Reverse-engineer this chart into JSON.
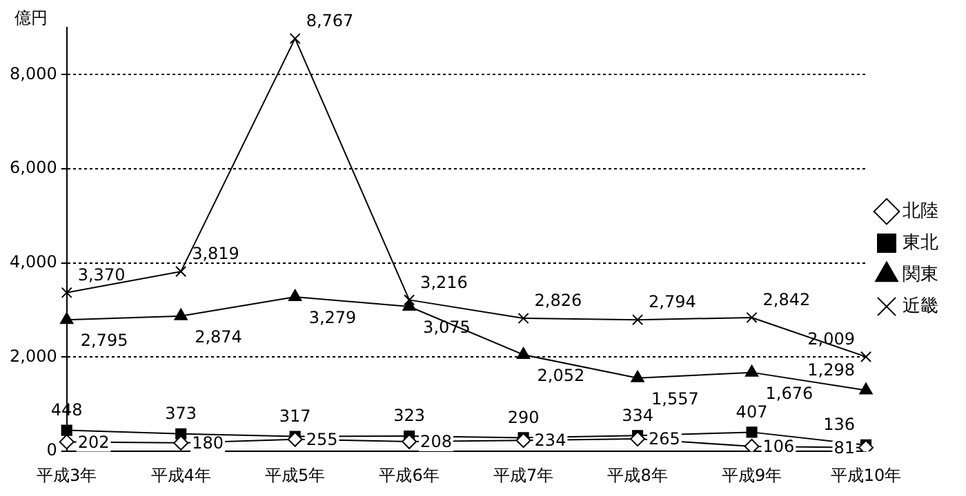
{
  "chart_data": {
    "type": "line",
    "ylabel": "億円",
    "categories": [
      "平成3年",
      "平成4年",
      "平成5年",
      "平成6年",
      "平成7年",
      "平成8年",
      "平成9年",
      "平成10年"
    ],
    "series": [
      {
        "name": "北陸",
        "color": "#000000",
        "marker": "diamond",
        "values": [
          202,
          180,
          255,
          208,
          234,
          265,
          106,
          81
        ]
      },
      {
        "name": "東北",
        "color": "#000000",
        "marker": "square",
        "values": [
          448,
          373,
          317,
          323,
          290,
          334,
          407,
          136
        ]
      },
      {
        "name": "関東",
        "color": "#000000",
        "marker": "triangle",
        "values": [
          2795,
          2874,
          3279,
          3075,
          2052,
          1557,
          1676,
          1298
        ],
        "value_labels": [
          "2,795",
          "2,874",
          "3,279",
          "3,075",
          "2,052",
          "1,557",
          "1,676",
          "1,298"
        ]
      },
      {
        "name": "近畿",
        "color": "#000000",
        "marker": "cross",
        "values": [
          3370,
          3819,
          8767,
          3216,
          2826,
          2794,
          2842,
          2009
        ],
        "value_labels": [
          "3,370",
          "3,819",
          "8,767",
          "3,216",
          "2,826",
          "2,794",
          "2,842",
          "2,009"
        ]
      }
    ],
    "ylim": [
      0,
      9000
    ],
    "yticks": [
      0,
      {
        "value": 2000,
        "label": "2,000"
      },
      {
        "value": 4000,
        "label": "4,000"
      },
      {
        "value": 6000,
        "label": "6,000"
      },
      {
        "value": 8000,
        "label": "8,000"
      }
    ],
    "grid": "y",
    "legend": "right",
    "data_labels": true
  }
}
